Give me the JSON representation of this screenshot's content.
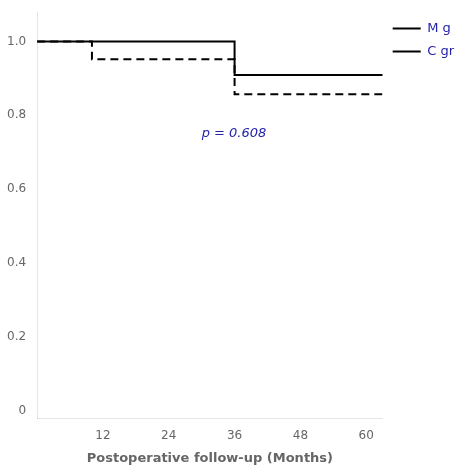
{
  "chart_data": {
    "type": "step",
    "xlabel": "Postoperative follow-up (Months)",
    "xlim": [
      0,
      63
    ],
    "xticks": [
      12,
      24,
      36,
      48,
      60
    ],
    "ylim": [
      -0.02,
      1.08
    ],
    "yticks": [
      0,
      0.2,
      0.4,
      0.6,
      0.8,
      {
        "value": 1.0,
        "label": "1.0"
      }
    ],
    "grid": false,
    "legend": "right",
    "series": [
      {
        "name": "M g",
        "color": "#000000",
        "line_style": "solid",
        "x": [
          0,
          10,
          36,
          36,
          42,
          42,
          63
        ],
        "values": [
          1.0,
          1.0,
          1.0,
          0.909,
          0.909,
          0.909,
          0.909
        ]
      },
      {
        "name": "C gr",
        "color": "#000000",
        "line_style": "dashed",
        "x": [
          0,
          10,
          10,
          36,
          36,
          63
        ],
        "values": [
          1.0,
          1.0,
          0.952,
          0.952,
          0.857,
          0.857
        ]
      }
    ],
    "annotations": [
      {
        "text": "p = 0.608",
        "x": 30,
        "y": 0.74,
        "color": "#2222aa"
      }
    ]
  }
}
